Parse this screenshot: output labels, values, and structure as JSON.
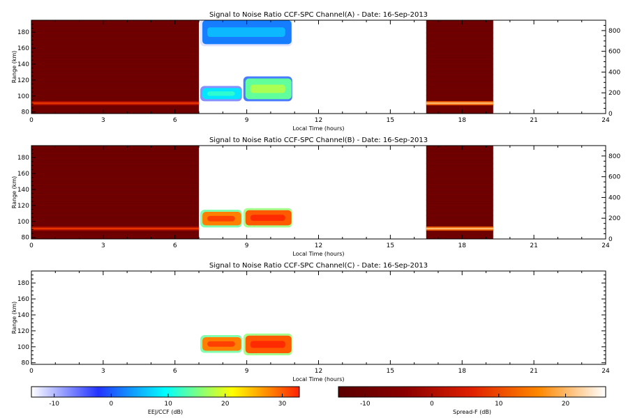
{
  "chart_data": [
    {
      "type": "heatmap",
      "title": "Signal to Noise Ratio CCF-SPC Channel(A) - Date: 16-Sep-2013",
      "xlabel": "Local Time (hours)",
      "ylabel": "Range (km)",
      "xlim": [
        0,
        24
      ],
      "ylim": [
        78,
        195
      ],
      "xticks": [
        0,
        3,
        6,
        9,
        12,
        15,
        18,
        21,
        24
      ],
      "yticks": [
        80,
        100,
        120,
        140,
        160,
        180
      ],
      "y2lim": [
        0,
        900
      ],
      "y2ticks": [
        0,
        200,
        400,
        600,
        800
      ],
      "spreadf_blocks": [
        {
          "t0": 0,
          "t1": 7.0,
          "layer_range": 91,
          "layer_value": 8
        },
        {
          "t0": 16.5,
          "t1": 19.3,
          "layer_range": 91,
          "layer_value": 20
        }
      ],
      "eej_regions": [
        {
          "t0": 7.0,
          "t1": 10.9,
          "r0": 165,
          "r1": 195,
          "value": 2
        },
        {
          "t0": 7.0,
          "t1": 8.8,
          "r0": 96,
          "r1": 110,
          "value": 8
        },
        {
          "t0": 8.8,
          "t1": 10.9,
          "r0": 96,
          "r1": 122,
          "value": 14
        }
      ]
    },
    {
      "type": "heatmap",
      "title": "Signal to Noise Ratio CCF-SPC Channel(B) - Date: 16-Sep-2013",
      "xlabel": "Local Time (hours)",
      "ylabel": "Range (km)",
      "xlim": [
        0,
        24
      ],
      "ylim": [
        78,
        195
      ],
      "xticks": [
        0,
        3,
        6,
        9,
        12,
        15,
        18,
        21,
        24
      ],
      "yticks": [
        80,
        100,
        120,
        140,
        160,
        180
      ],
      "y2lim": [
        0,
        900
      ],
      "y2ticks": [
        0,
        200,
        400,
        600,
        800
      ],
      "spreadf_blocks": [
        {
          "t0": 0,
          "t1": 7.0,
          "layer_range": 91,
          "layer_value": 8
        },
        {
          "t0": 16.5,
          "t1": 19.3,
          "layer_range": 91,
          "layer_value": 20
        }
      ],
      "eej_regions": [
        {
          "t0": 7.0,
          "t1": 8.8,
          "r0": 95,
          "r1": 112,
          "value": 28
        },
        {
          "t0": 8.8,
          "t1": 10.9,
          "r0": 95,
          "r1": 114,
          "value": 30
        }
      ]
    },
    {
      "type": "heatmap",
      "title": "Signal to Noise Ratio CCF-SPC Channel(C) - Date: 16-Sep-2013",
      "xlabel": "Local Time (hours)",
      "ylabel": "Range (km)",
      "xlim": [
        0,
        24
      ],
      "ylim": [
        78,
        195
      ],
      "xticks": [
        0,
        3,
        6,
        9,
        12,
        15,
        18,
        21,
        24
      ],
      "yticks": [
        80,
        100,
        120,
        140,
        160,
        180
      ],
      "spreadf_blocks": [],
      "eej_regions": [
        {
          "t0": 7.0,
          "t1": 8.8,
          "r0": 95,
          "r1": 112,
          "value": 28
        },
        {
          "t0": 8.8,
          "t1": 10.9,
          "r0": 92,
          "r1": 114,
          "value": 30
        }
      ]
    }
  ],
  "colorbars": [
    {
      "label": "EEJ/CCF (dB)",
      "min": -14,
      "max": 33,
      "ticks": [
        -10,
        0,
        10,
        20,
        30
      ],
      "stops": [
        "#ffffff",
        "#2233ff",
        "#00ffff",
        "#ffff00",
        "#ff2200"
      ]
    },
    {
      "label": "Spread-F (dB)",
      "min": -14,
      "max": 26,
      "ticks": [
        -10,
        0,
        10,
        20
      ],
      "stops": [
        "#5a0000",
        "#8a0000",
        "#e02000",
        "#ff8800",
        "#ffffff"
      ]
    }
  ]
}
